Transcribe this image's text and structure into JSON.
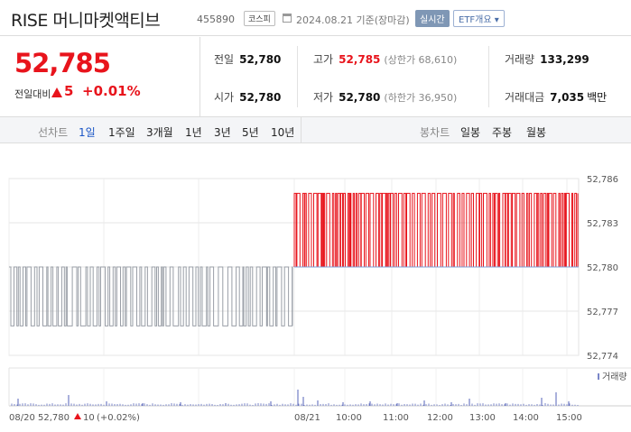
{
  "header": {
    "name": "RISE 머니마켓액티브",
    "code": "455890",
    "market": "코스피",
    "date": "2024.08.21 기준(장마감)",
    "realtime": "실시간",
    "etf_button": "ETF개요"
  },
  "price": {
    "current": "52,785",
    "change_label": "전일대비",
    "change": "5",
    "change_pct": "+0.01%"
  },
  "stats": {
    "prev_close": {
      "label": "전일",
      "value": "52,780"
    },
    "high": {
      "label": "고가",
      "value": "52,785",
      "sub": "(상한가 68,610)"
    },
    "volume": {
      "label": "거래량",
      "value": "133,299"
    },
    "open": {
      "label": "시가",
      "value": "52,780"
    },
    "low": {
      "label": "저가",
      "value": "52,780",
      "sub": "(하한가 36,950)"
    },
    "amount": {
      "label": "거래대금",
      "value": "7,035",
      "unit": "백만"
    }
  },
  "period_bar": {
    "line_chart_label": "선차트",
    "line_periods": [
      "1일",
      "1주일",
      "3개월",
      "1년",
      "3년",
      "5년",
      "10년"
    ],
    "active_line_period": "1일",
    "candle_chart_label": "봉차트",
    "candle_periods": [
      "일봉",
      "주봉",
      "월봉"
    ]
  },
  "chart_data": {
    "type": "line",
    "y_ticks": [
      "52,786",
      "52,783",
      "52,780",
      "52,777",
      "52,774"
    ],
    "ylim": [
      52774,
      52786
    ],
    "x_labels": [
      "08/20",
      "08/21",
      "10:00",
      "11:00",
      "12:00",
      "13:00",
      "14:00",
      "15:00"
    ],
    "prev_day_summary": {
      "date": "08/20",
      "close": "52,780",
      "change": "10",
      "change_pct": "(+0.02%)"
    },
    "volume_legend": "거래량",
    "series": [
      {
        "segment": "08/20",
        "color": "#9a9fa7",
        "high": 52780,
        "low": 52776
      },
      {
        "segment": "08/21",
        "color": "#e8141c",
        "high": 52785,
        "low": 52780
      }
    ],
    "grid": true
  },
  "colors": {
    "up": "#e8141c",
    "down": "#1a55c6",
    "accent": "#1a55c6"
  }
}
